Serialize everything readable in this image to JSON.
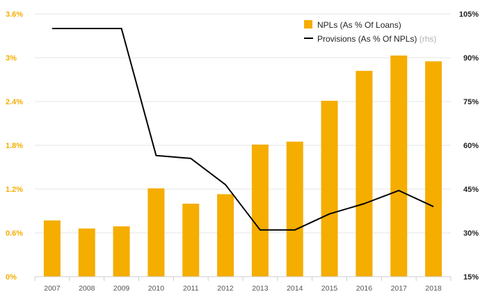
{
  "colors": {
    "bar": "#f5ad00",
    "line": "#000000",
    "grid": "#e6e6e6",
    "left_tick": "#f5ad00",
    "right_tick": "#222222"
  },
  "legend": {
    "bar_label": "NPLs (As % Of Loans)",
    "line_label": "Provisions (As % Of NPLs)",
    "line_note": "(rhs)",
    "placement": "top-right"
  },
  "chart_data": {
    "type": "bar",
    "categories": [
      "2007",
      "2008",
      "2009",
      "2010",
      "2011",
      "2012",
      "2013",
      "2014",
      "2015",
      "2016",
      "2017",
      "2018"
    ],
    "series": [
      {
        "name": "NPLs (As % Of Loans)",
        "type": "bar",
        "axis": "left",
        "values": [
          0.77,
          0.66,
          0.69,
          1.21,
          1.0,
          1.13,
          1.81,
          1.85,
          2.41,
          2.82,
          3.03,
          2.95
        ]
      },
      {
        "name": "Provisions (As % Of NPLs)",
        "type": "line",
        "axis": "right",
        "values": [
          100,
          100,
          100,
          56.5,
          55.5,
          46.5,
          31,
          31,
          36.5,
          40,
          44.5,
          39
        ]
      }
    ],
    "y_left": {
      "ticks": [
        0,
        0.6,
        1.2,
        1.8,
        2.4,
        3.0,
        3.6
      ],
      "tick_labels": [
        "0%",
        "0.6%",
        "1.2%",
        "1.8%",
        "2.4%",
        "3%",
        "3.6%"
      ],
      "range": [
        0,
        3.6
      ]
    },
    "y_right": {
      "ticks": [
        15,
        30,
        45,
        60,
        75,
        90,
        105
      ],
      "tick_labels": [
        "15%",
        "30%",
        "45%",
        "60%",
        "75%",
        "90%",
        "105%"
      ],
      "range": [
        15,
        105
      ]
    },
    "grid": true
  }
}
